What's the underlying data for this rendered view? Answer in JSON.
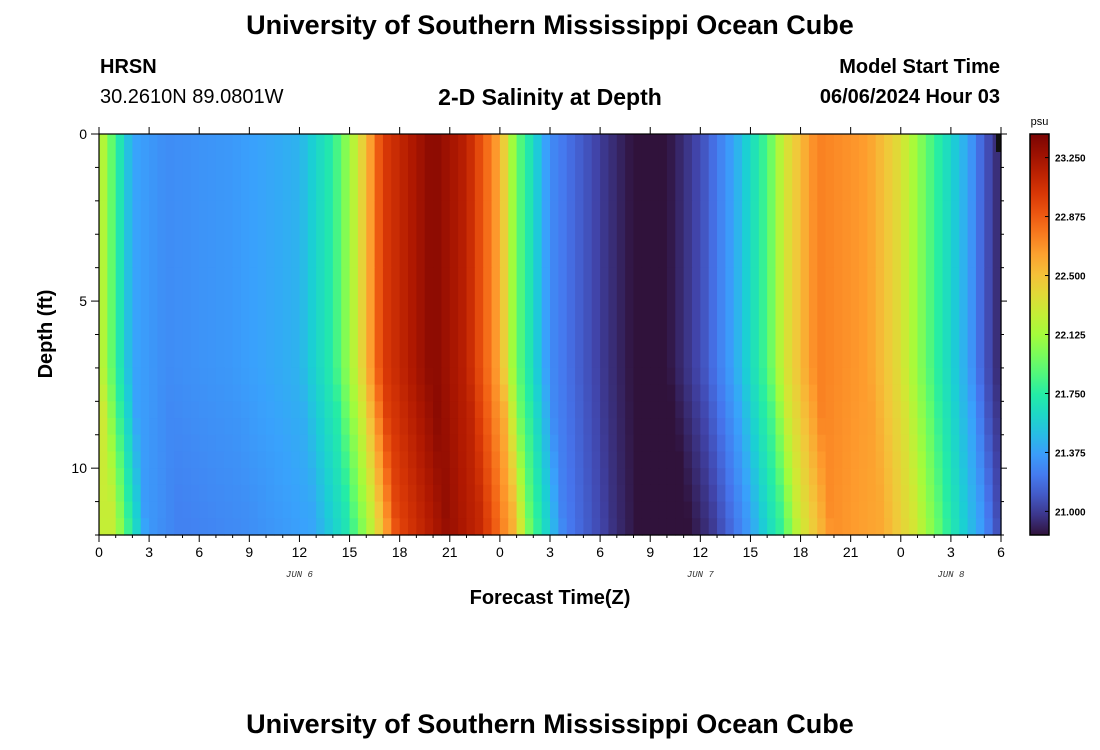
{
  "header": {
    "title": "University of Southern Mississippi Ocean Cube",
    "station": "HRSN",
    "coords": "30.2610N  89.0801W",
    "plot_title": "2-D Salinity at Depth",
    "model_start_label": "Model Start Time",
    "model_start_value": "06/06/2024 Hour 03"
  },
  "footer": {
    "title": "University of Southern Mississippi Ocean Cube"
  },
  "chart_data": {
    "type": "heatmap",
    "title": "2-D Salinity at Depth",
    "xlabel": "Forecast Time(Z)",
    "ylabel": "Depth (ft)",
    "x_tick_labels": [
      "0",
      "3",
      "6",
      "9",
      "12",
      "15",
      "18",
      "21",
      "0",
      "3",
      "6",
      "9",
      "12",
      "15",
      "18",
      "21",
      "0",
      "3",
      "6"
    ],
    "x_range_hours": [
      0,
      54
    ],
    "date_labels": [
      {
        "text": "JUN 6",
        "hour": 12
      },
      {
        "text": "JUN 7",
        "hour": 36
      },
      {
        "text": "JUN 8",
        "hour": 51
      }
    ],
    "y_tick_labels": [
      "0",
      "5",
      "10"
    ],
    "y_tick_values": [
      0,
      5,
      10
    ],
    "ylim": [
      0,
      12
    ],
    "colorbar": {
      "unit": "psu",
      "min": 20.85,
      "max": 23.4,
      "tick_labels": [
        "23.250",
        "22.875",
        "22.500",
        "22.125",
        "21.750",
        "21.375",
        "21.000"
      ],
      "tick_values": [
        23.25,
        22.875,
        22.5,
        22.125,
        21.75,
        21.375,
        21.0
      ]
    },
    "time_series_surface": [
      {
        "hour": 0,
        "value": 22.3
      },
      {
        "hour": 1,
        "value": 21.8
      },
      {
        "hour": 2,
        "value": 21.4
      },
      {
        "hour": 4,
        "value": 21.3
      },
      {
        "hour": 8,
        "value": 21.35
      },
      {
        "hour": 12,
        "value": 21.45
      },
      {
        "hour": 14,
        "value": 21.75
      },
      {
        "hour": 15.5,
        "value": 22.3
      },
      {
        "hour": 17,
        "value": 23.0
      },
      {
        "hour": 20,
        "value": 23.35
      },
      {
        "hour": 22,
        "value": 23.15
      },
      {
        "hour": 24,
        "value": 22.6
      },
      {
        "hour": 25,
        "value": 21.95
      },
      {
        "hour": 27,
        "value": 21.3
      },
      {
        "hour": 30,
        "value": 21.0
      },
      {
        "hour": 32,
        "value": 20.85
      },
      {
        "hour": 34,
        "value": 20.85
      },
      {
        "hour": 36,
        "value": 21.05
      },
      {
        "hour": 38,
        "value": 21.4
      },
      {
        "hour": 40,
        "value": 21.85
      },
      {
        "hour": 41,
        "value": 22.3
      },
      {
        "hour": 43,
        "value": 22.75
      },
      {
        "hour": 46,
        "value": 22.65
      },
      {
        "hour": 48,
        "value": 22.35
      },
      {
        "hour": 50,
        "value": 21.8
      },
      {
        "hour": 52,
        "value": 21.4
      },
      {
        "hour": 53,
        "value": 21.1
      },
      {
        "hour": 54,
        "value": 20.9
      }
    ]
  }
}
